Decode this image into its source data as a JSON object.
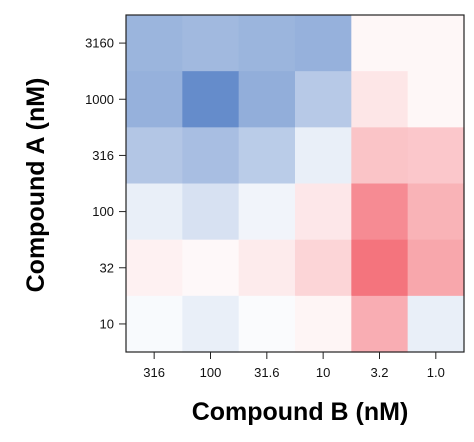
{
  "chart_data": {
    "type": "heatmap",
    "xlabel": "Compound B (nM)",
    "ylabel": "Compound A (nM)",
    "x_categories": [
      "316",
      "100",
      "31.6",
      "10",
      "3.2",
      "1.0"
    ],
    "y_categories": [
      "3160",
      "1000",
      "316",
      "100",
      "32",
      "10"
    ],
    "values": [
      [
        -0.55,
        -0.52,
        -0.55,
        -0.58,
        0.05,
        0.05
      ],
      [
        -0.58,
        -0.85,
        -0.6,
        -0.4,
        0.15,
        0.05
      ],
      [
        -0.42,
        -0.48,
        -0.38,
        -0.12,
        0.35,
        0.33
      ],
      [
        -0.12,
        -0.22,
        -0.08,
        0.14,
        0.68,
        0.45
      ],
      [
        0.08,
        0.04,
        0.12,
        0.25,
        0.82,
        0.52
      ],
      [
        -0.04,
        -0.12,
        -0.03,
        0.06,
        0.48,
        -0.12
      ]
    ],
    "colors": {
      "negative": "#4a78c2",
      "neutral": "#ffffff",
      "positive": "#f25560"
    },
    "legend": "none"
  }
}
